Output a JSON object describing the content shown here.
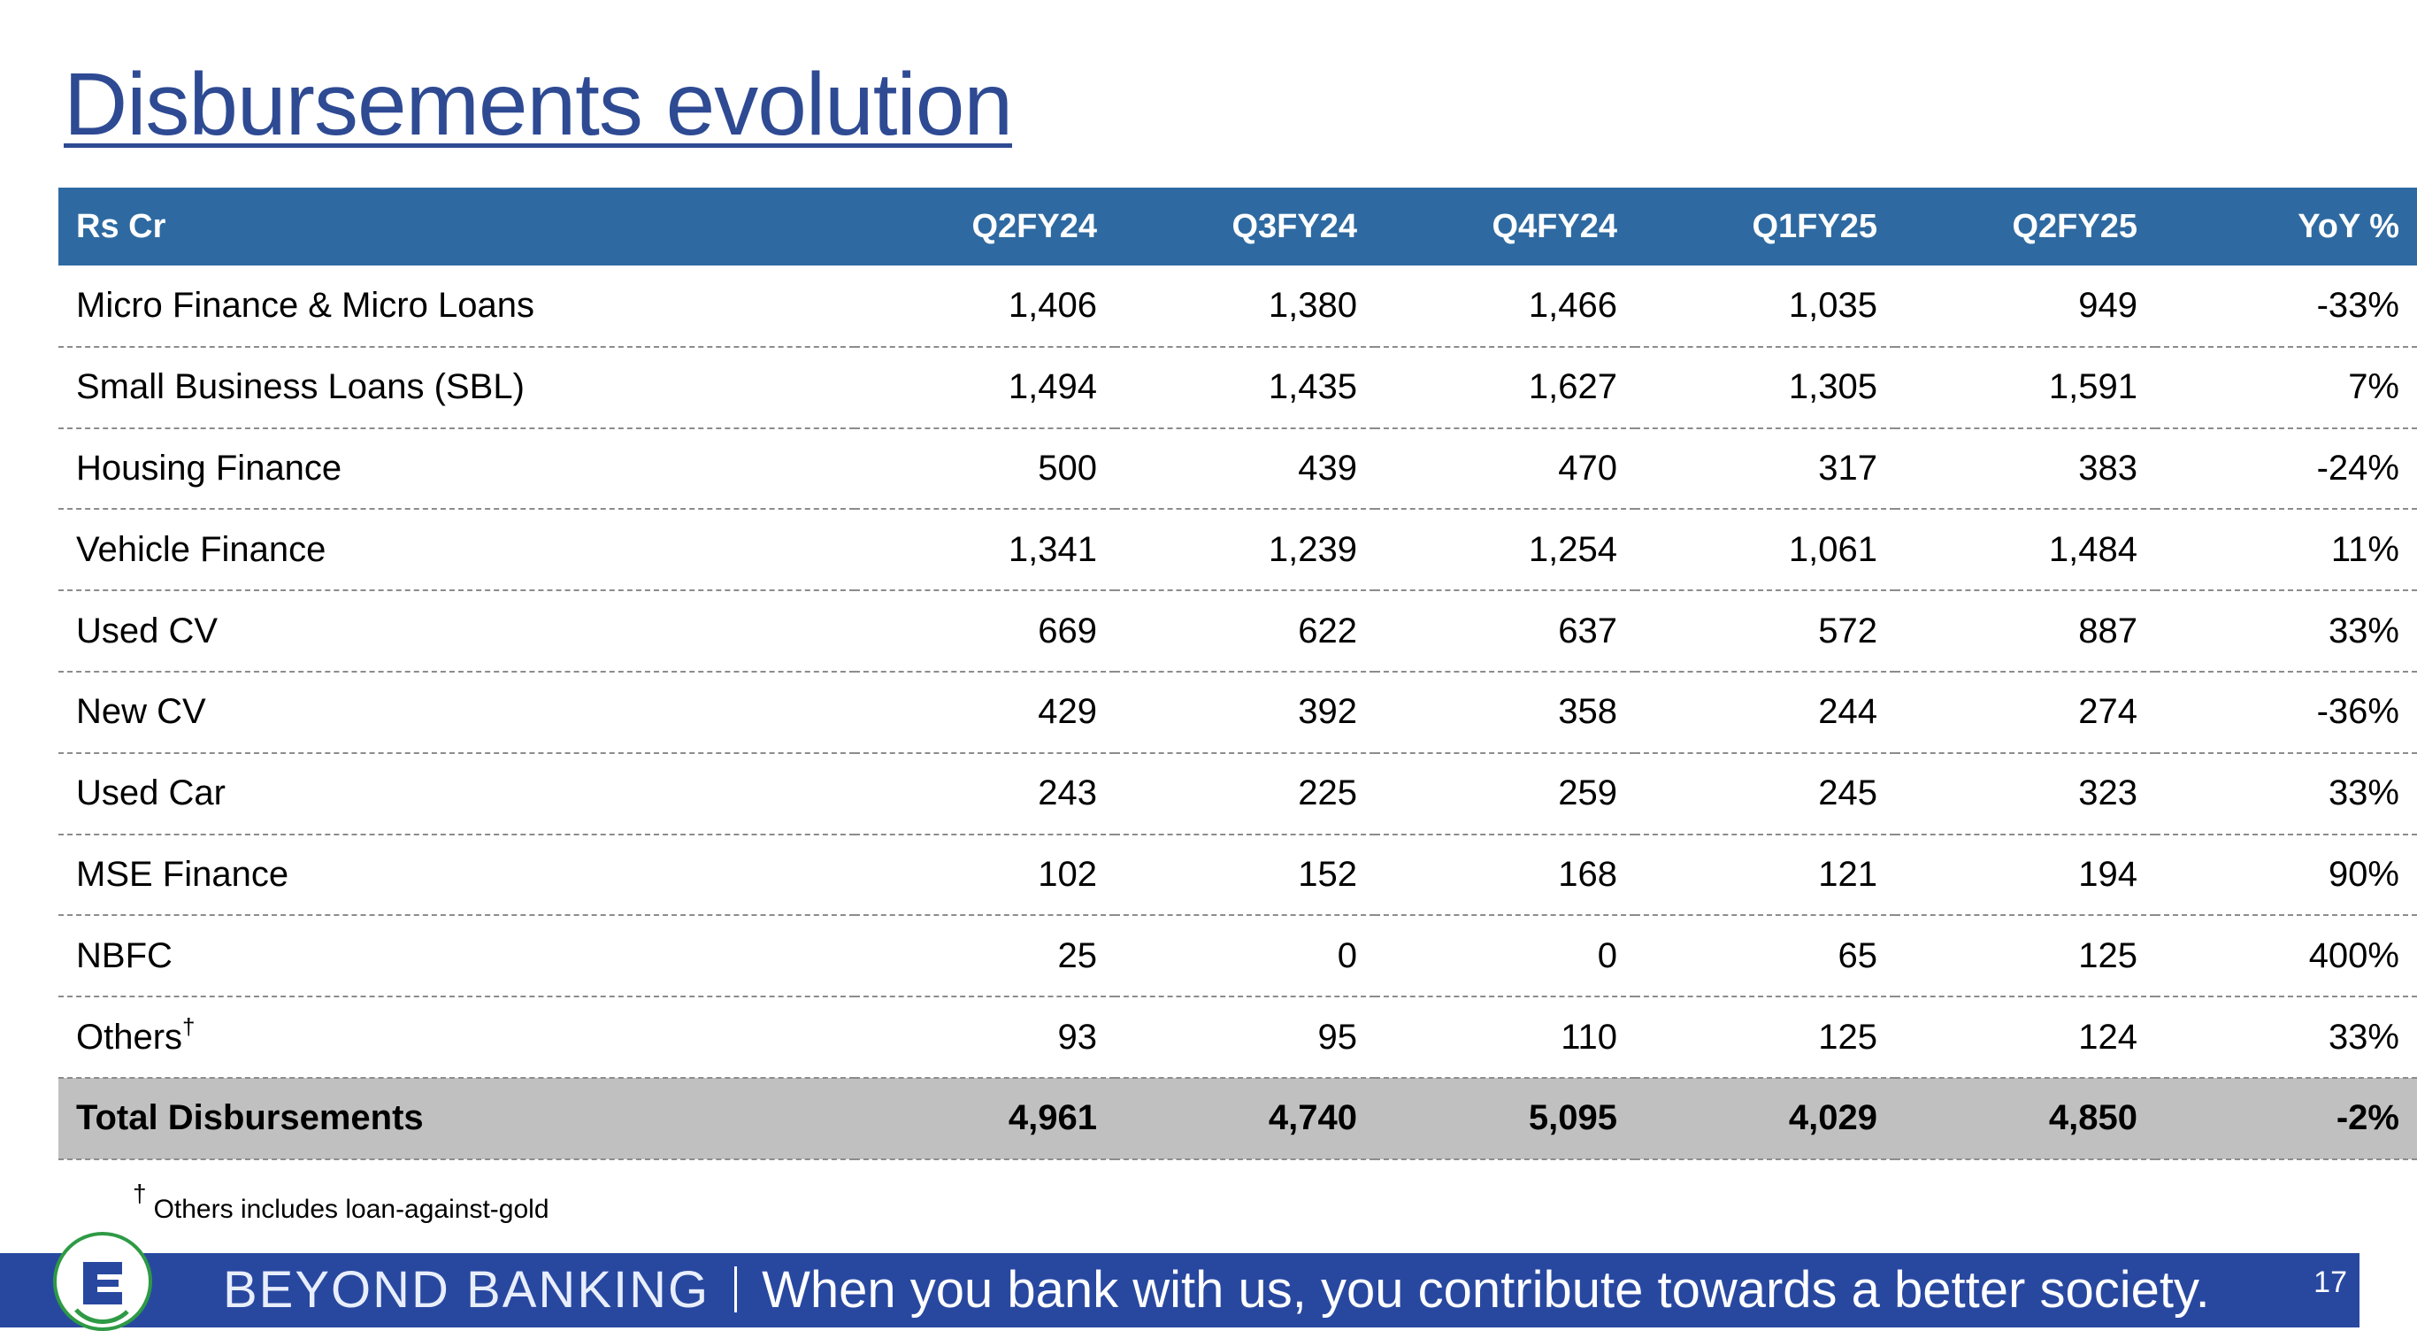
{
  "title": "Disbursements evolution",
  "table": {
    "headers": [
      "Rs Cr",
      "Q2FY24",
      "Q3FY24",
      "Q4FY24",
      "Q1FY25",
      "Q2FY25",
      "YoY %"
    ],
    "rows": [
      {
        "label": "Micro Finance & Micro Loans",
        "values": [
          "1,406",
          "1,380",
          "1,466",
          "1,035",
          "949",
          "-33%"
        ]
      },
      {
        "label": "Small Business Loans (SBL)",
        "values": [
          "1,494",
          "1,435",
          "1,627",
          "1,305",
          "1,591",
          "7%"
        ]
      },
      {
        "label": "Housing Finance",
        "values": [
          "500",
          "439",
          "470",
          "317",
          "383",
          "-24%"
        ]
      },
      {
        "label": "Vehicle Finance",
        "values": [
          "1,341",
          "1,239",
          "1,254",
          "1,061",
          "1,484",
          "11%"
        ]
      },
      {
        "label": "Used CV",
        "values": [
          "669",
          "622",
          "637",
          "572",
          "887",
          "33%"
        ]
      },
      {
        "label": "New CV",
        "values": [
          "429",
          "392",
          "358",
          "244",
          "274",
          "-36%"
        ]
      },
      {
        "label": "Used Car",
        "values": [
          "243",
          "225",
          "259",
          "245",
          "323",
          "33%"
        ]
      },
      {
        "label": "MSE Finance",
        "values": [
          "102",
          "152",
          "168",
          "121",
          "194",
          "90%"
        ]
      },
      {
        "label": "NBFC",
        "values": [
          "25",
          "0",
          "0",
          "65",
          "125",
          "400%"
        ]
      },
      {
        "label": "Others",
        "label_mark": "†",
        "values": [
          "93",
          "95",
          "110",
          "125",
          "124",
          "33%"
        ]
      }
    ],
    "total": {
      "label": "Total Disbursements",
      "values": [
        "4,961",
        "4,740",
        "5,095",
        "4,029",
        "4,850",
        "-2%"
      ]
    }
  },
  "footnote": {
    "mark": "†",
    "text": "Others includes loan-against-gold"
  },
  "banner": {
    "brand": "BEYOND BANKING",
    "tagline": "When you bank with us, you contribute towards a better society.",
    "page_number": "17"
  },
  "colors": {
    "title": "#2e4a93",
    "header_bg": "#2e6aa1",
    "total_bg": "#c0c0c0",
    "banner_bg": "#2848a0",
    "logo_ring": "#2e9a45"
  },
  "icons": {
    "logo": "bank-logo-icon"
  }
}
